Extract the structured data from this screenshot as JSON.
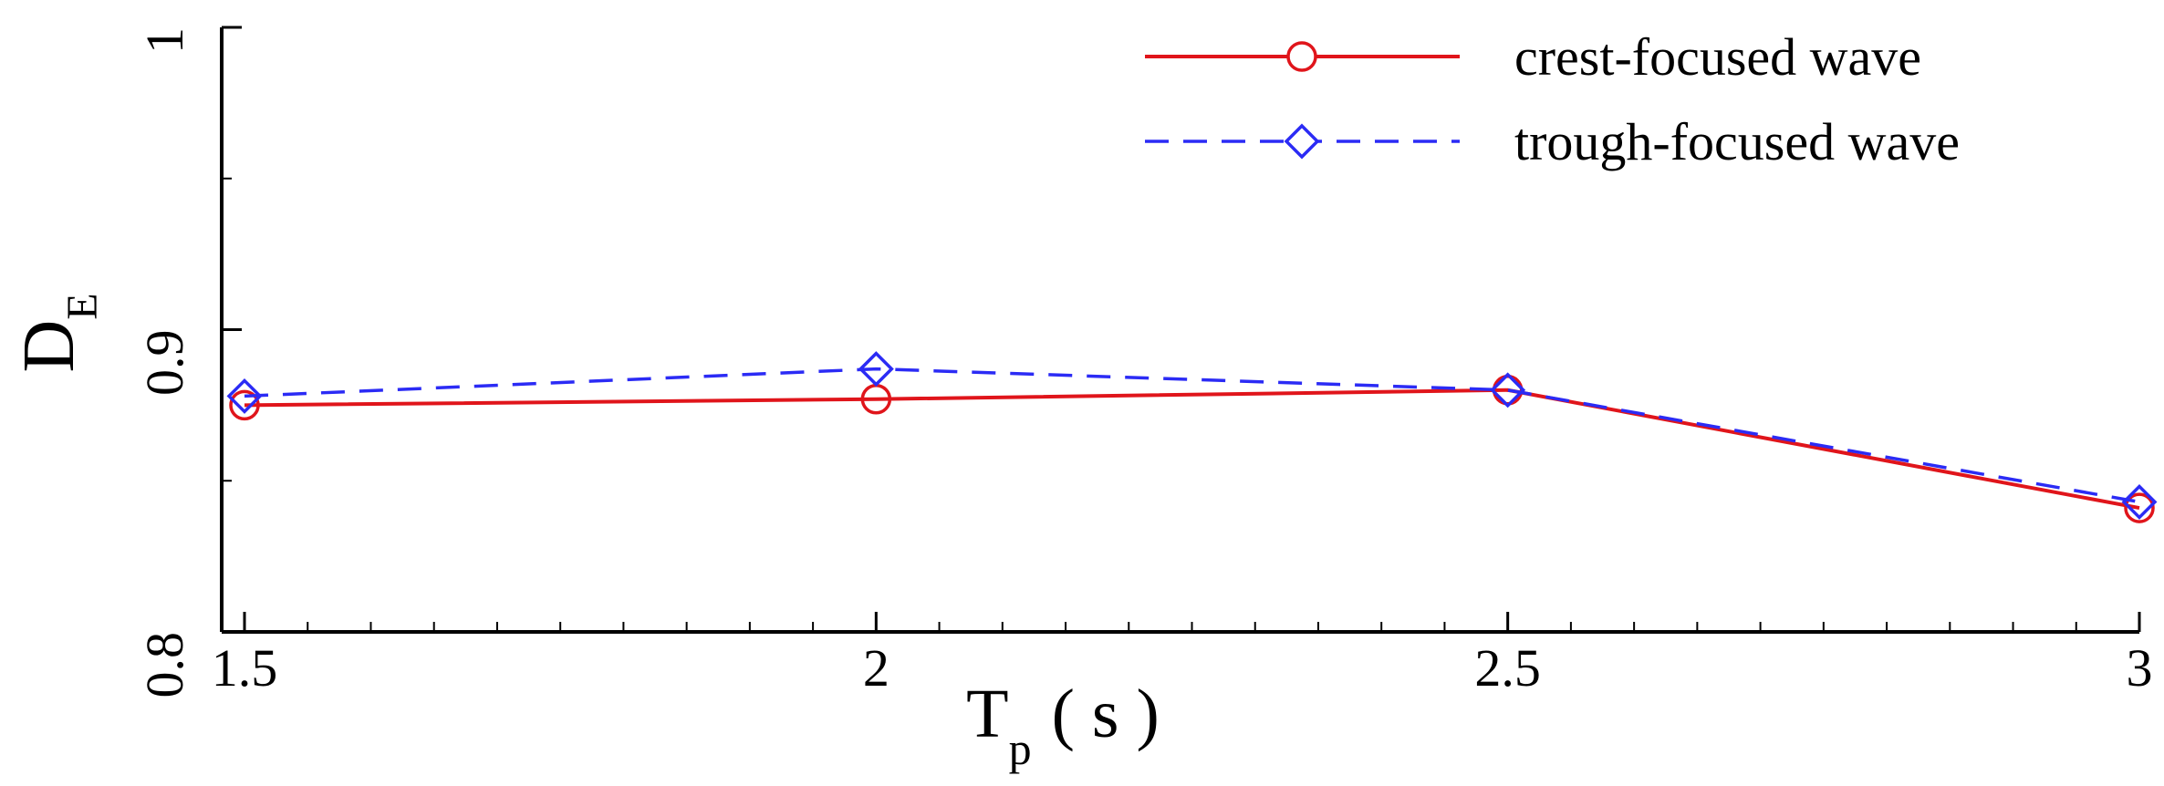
{
  "chart_data": {
    "type": "line",
    "xlabel": {
      "main": "T",
      "sub": "p",
      "unit": "( s )"
    },
    "ylabel": {
      "main": "D",
      "sub": "E"
    },
    "xlim": [
      1.5,
      3
    ],
    "ylim": [
      0.8,
      1
    ],
    "x_ticks": [
      "1.5",
      "2",
      "2.5",
      "3"
    ],
    "y_ticks": [
      "0.8",
      "0.9",
      "1"
    ],
    "x": [
      1.5,
      2,
      2.5,
      3
    ],
    "grid": false,
    "legend_position": "top-right",
    "series": [
      {
        "name": "crest-focused wave",
        "values": [
          0.875,
          0.877,
          0.88,
          0.841
        ],
        "color": "#e0151b",
        "marker": "circle",
        "line_style": "solid"
      },
      {
        "name": "trough-focused wave",
        "values": [
          0.878,
          0.887,
          0.88,
          0.843
        ],
        "color": "#2b2bf5",
        "marker": "diamond",
        "line_style": "dashed"
      }
    ]
  }
}
